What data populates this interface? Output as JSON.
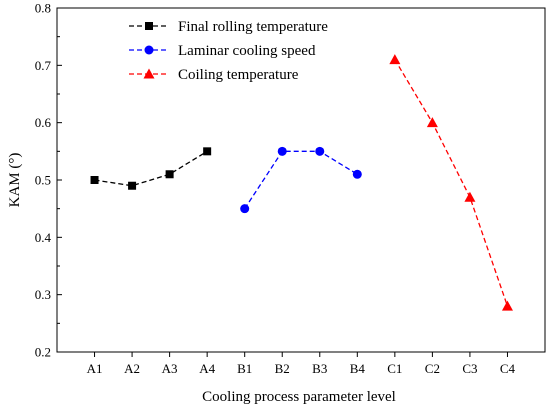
{
  "chart_data": {
    "type": "line",
    "title": "",
    "xlabel": "Cooling process parameter level",
    "ylabel": "KAM (°)",
    "categories": [
      "A1",
      "A2",
      "A3",
      "A4",
      "B1",
      "B2",
      "B3",
      "B4",
      "C1",
      "C2",
      "C3",
      "C4"
    ],
    "ylim": [
      0.2,
      0.8
    ],
    "yticks": [
      "0.2",
      "0.3",
      "0.4",
      "0.5",
      "0.6",
      "0.7",
      "0.8"
    ],
    "grid": false,
    "legend_position": "top-left",
    "series": [
      {
        "name": "Final rolling temperature",
        "color": "#000000",
        "marker": "square",
        "line_style": "dashed",
        "x": [
          "A1",
          "A2",
          "A3",
          "A4"
        ],
        "values": [
          0.5,
          0.49,
          0.51,
          0.55
        ]
      },
      {
        "name": "Laminar cooling speed",
        "color": "#0000ff",
        "marker": "circle",
        "line_style": "dashed",
        "x": [
          "B1",
          "B2",
          "B3",
          "B4"
        ],
        "values": [
          0.45,
          0.55,
          0.55,
          0.51
        ]
      },
      {
        "name": "Coiling temperature",
        "color": "#ff0000",
        "marker": "triangle",
        "line_style": "dashed",
        "x": [
          "C1",
          "C2",
          "C3",
          "C4"
        ],
        "values": [
          0.71,
          0.6,
          0.47,
          0.28
        ]
      }
    ]
  }
}
